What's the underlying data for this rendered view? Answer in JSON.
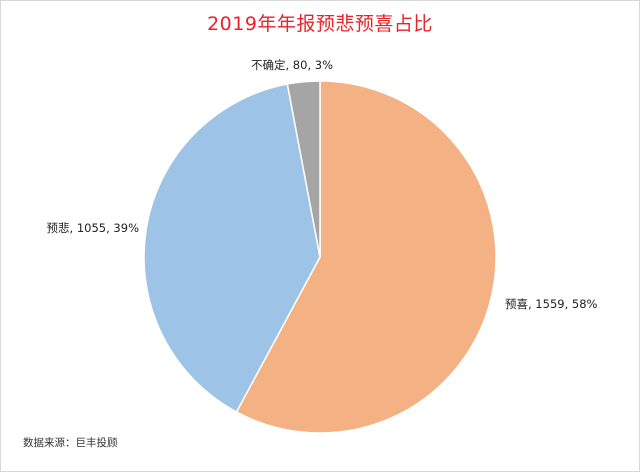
{
  "title": "2019年年报预悲预喜占比",
  "title_color": "#e8232a",
  "source": "数据来源：巨丰投顾",
  "chart_data": {
    "type": "pie",
    "title": "2019年年报预悲预喜占比",
    "start_angle_deg": 0,
    "direction": "clockwise",
    "slices": [
      {
        "name": "预喜",
        "value": 1559,
        "percent": "58%",
        "label": "预喜, 1559, 58%",
        "color": "#f4b183"
      },
      {
        "name": "预悲",
        "value": 1055,
        "percent": "39%",
        "label": "预悲, 1055, 39%",
        "color": "#9dc3e6"
      },
      {
        "name": "不确定",
        "value": 80,
        "percent": "3%",
        "label": "不确定, 80, 3%",
        "color": "#a5a5a5"
      }
    ]
  }
}
